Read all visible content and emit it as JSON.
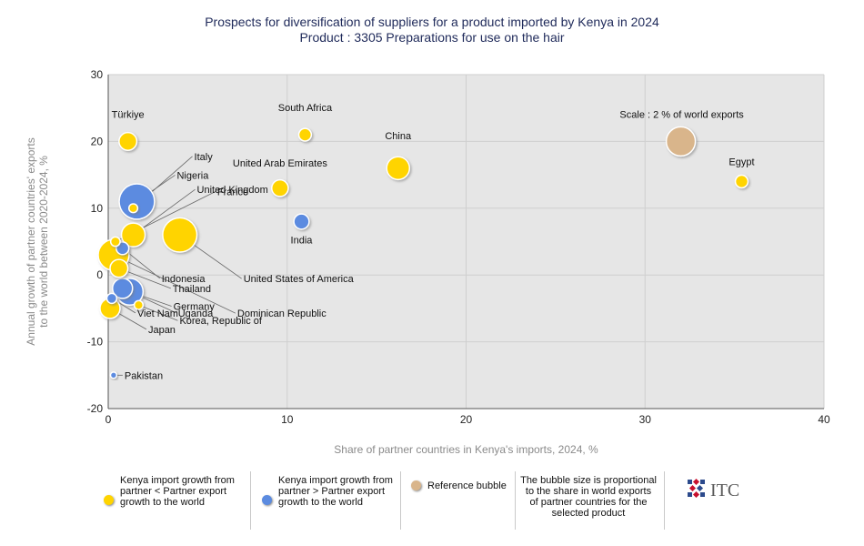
{
  "title": {
    "line1": "Prospects for diversification of suppliers for a product imported by Kenya in 2024",
    "line2": "Product : 3305 Preparations for use on the hair"
  },
  "colors": {
    "below": "#ffd400",
    "above": "#5b8be0",
    "reference": "#d9b58b",
    "plot_bg": "#e6e6e6",
    "title": "#1f2a5a"
  },
  "chart_data": {
    "type": "scatter",
    "subtype": "bubble",
    "title": "Prospects for diversification of suppliers for a product imported by Kenya in 2024",
    "subtitle": "Product : 3305 Preparations for use on the hair",
    "xlabel": "Share of partner countries in Kenya's imports, 2024, %",
    "ylabel": "Annual growth of partner countries' exports to the world between 2020-2024, %",
    "xlim": [
      0,
      40
    ],
    "ylim": [
      -20,
      30
    ],
    "xticks": [
      0,
      10,
      20,
      30,
      40
    ],
    "yticks": [
      -20,
      -10,
      0,
      10,
      20,
      30
    ],
    "grid": true,
    "points": [
      {
        "name": "Türkiye",
        "x": 1.1,
        "y": 20,
        "size": 3,
        "group": "below"
      },
      {
        "name": "South Africa",
        "x": 11,
        "y": 21,
        "size": 1.2,
        "group": "below"
      },
      {
        "name": "China",
        "x": 16.2,
        "y": 16,
        "size": 5.5,
        "group": "below"
      },
      {
        "name": "Egypt",
        "x": 35.4,
        "y": 14,
        "size": 1.2,
        "group": "below"
      },
      {
        "name": "United Arab Emirates",
        "x": 9.6,
        "y": 13,
        "size": 2.5,
        "group": "below"
      },
      {
        "name": "India",
        "x": 10.8,
        "y": 8,
        "size": 2,
        "group": "above"
      },
      {
        "name": "Italy",
        "x": 1.4,
        "y": 10,
        "size": 0.4,
        "group": "below"
      },
      {
        "name": "Nigeria",
        "x": 1.6,
        "y": 11,
        "size": 15,
        "group": "above"
      },
      {
        "name": "United Kingdom",
        "x": 1.4,
        "y": 6,
        "size": 6,
        "group": "below"
      },
      {
        "name": "France",
        "x": 0.4,
        "y": 5,
        "size": 0.5,
        "group": "below"
      },
      {
        "name": "United States of America",
        "x": 4,
        "y": 6,
        "size": 14,
        "group": "below"
      },
      {
        "name": "Indonesia",
        "x": 0.8,
        "y": 4,
        "size": 1.2,
        "group": "above"
      },
      {
        "name": "Thailand",
        "x": 0.6,
        "y": 1,
        "size": 3,
        "group": "below"
      },
      {
        "name": "Germany",
        "x": 1.2,
        "y": -2.5,
        "size": 8,
        "group": "above"
      },
      {
        "name": "Korea, Republic of",
        "x": 1.7,
        "y": -4.5,
        "size": 0.4,
        "group": "below"
      },
      {
        "name": "Dominican Republic",
        "x": 0.3,
        "y": 3,
        "size": 11,
        "group": "below"
      },
      {
        "name": "Viet Nam",
        "x": 0.2,
        "y": -3.5,
        "size": 0.6,
        "group": "above"
      },
      {
        "name": "Uganda",
        "x": 0.8,
        "y": -2,
        "size": 4,
        "group": "above"
      },
      {
        "name": "Japan",
        "x": 0.1,
        "y": -5,
        "size": 4,
        "group": "below"
      },
      {
        "name": "Pakistan",
        "x": 0.3,
        "y": -15,
        "size": 0.1,
        "group": "above"
      }
    ],
    "reference_bubble": {
      "label": "Scale : 2 % of world exports",
      "x": 32,
      "y": 20,
      "size": 2
    }
  },
  "legend": {
    "item1": "Kenya import growth from partner < Partner export growth to the world",
    "item2": "Kenya import growth from partner > Partner export growth to the world",
    "item3": "Reference bubble",
    "note": "The bubble size is proportional to the share in world exports of partner countries for the selected product"
  },
  "logo": {
    "text": "ITC"
  }
}
